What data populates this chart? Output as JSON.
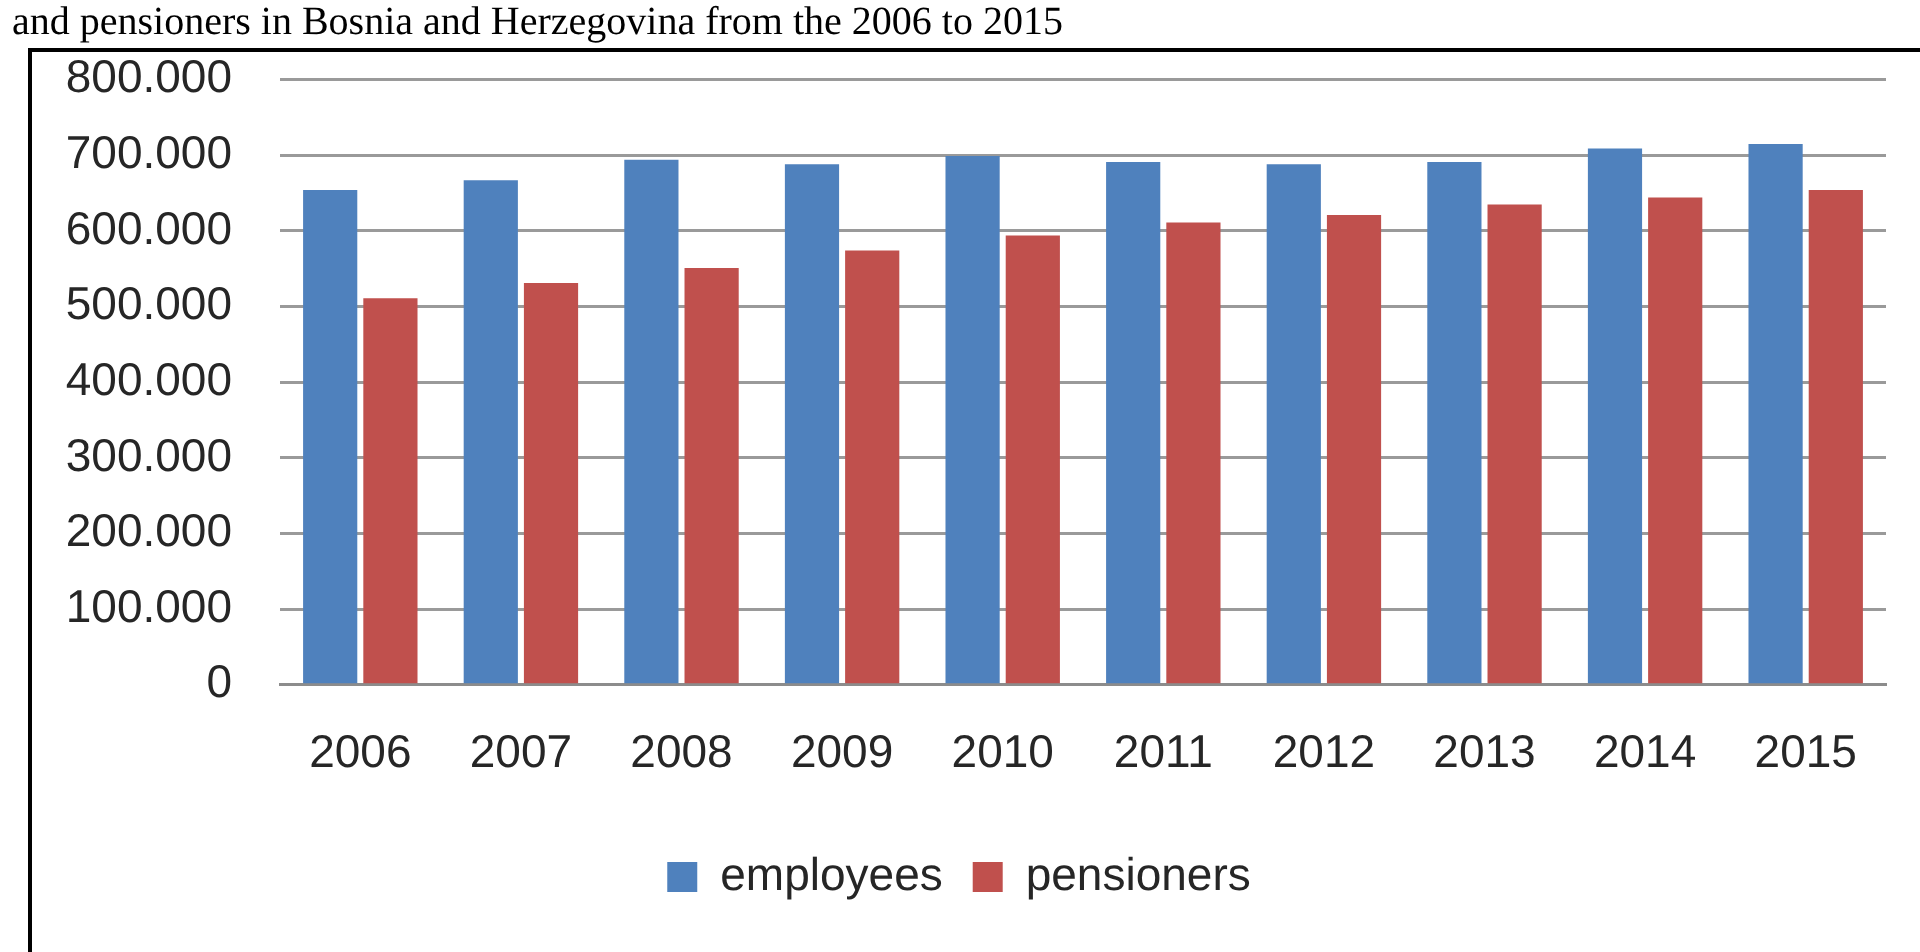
{
  "chart_data": {
    "type": "bar",
    "title": "and pensioners in Bosnia and Herzegovina from the 2006 to 2015",
    "categories": [
      "2006",
      "2007",
      "2008",
      "2009",
      "2010",
      "2011",
      "2012",
      "2013",
      "2014",
      "2015"
    ],
    "series": [
      {
        "name": "employees",
        "color": "#4f81bd",
        "values": [
          654000,
          667000,
          694000,
          688000,
          699000,
          691000,
          688000,
          691000,
          709000,
          715000
        ]
      },
      {
        "name": "pensioners",
        "color": "#c0504d",
        "values": [
          511000,
          531000,
          551000,
          574000,
          594000,
          611000,
          621000,
          635000,
          644000,
          654000
        ]
      }
    ],
    "ylim": [
      0,
      800000
    ],
    "yticks": [
      0,
      {
        "value": 100000,
        "label": "100.000"
      },
      {
        "value": 200000,
        "label": "200.000"
      },
      {
        "value": 300000,
        "label": "300.000"
      },
      {
        "value": 400000,
        "label": "400.000"
      },
      {
        "value": 500000,
        "label": "500.000"
      },
      {
        "value": 600000,
        "label": "600.000"
      },
      {
        "value": 700000,
        "label": "700.000"
      },
      {
        "value": 800000,
        "label": "800.000"
      }
    ],
    "grid": "y",
    "legend": "bottom"
  }
}
